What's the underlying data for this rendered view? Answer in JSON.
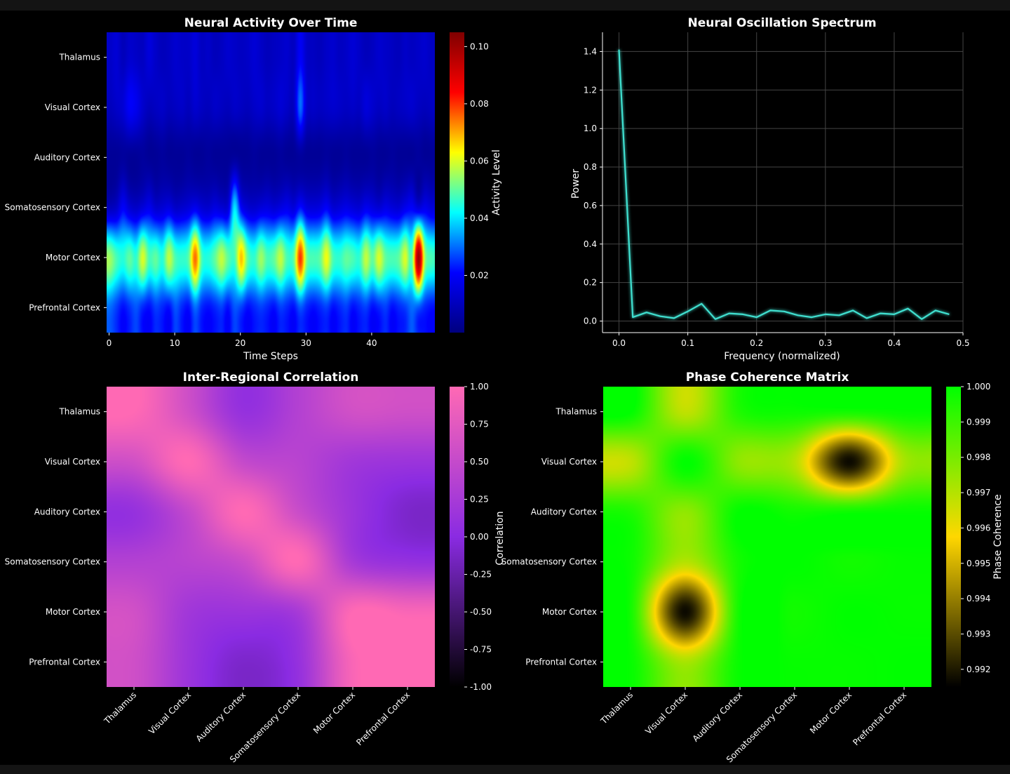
{
  "regions": [
    "Thalamus",
    "Visual Cortex",
    "Auditory Cortex",
    "Somatosensory Cortex",
    "Motor Cortex",
    "Prefrontal Cortex"
  ],
  "colors": {
    "background": "#000000",
    "spectrum_line": "#40E0D0",
    "activity_colormap": [
      "#00007f",
      "#0000ff",
      "#00ffff",
      "#ffff00",
      "#ff0000",
      "#7f0000"
    ],
    "correlation_colormap": [
      "#000000",
      "#8a2be2",
      "#ff69b4"
    ],
    "coherence_colormap": [
      "#000000",
      "#ffd700",
      "#00ff00"
    ]
  },
  "chart_data": [
    {
      "type": "heatmap",
      "title": "Neural Activity Over Time",
      "xlabel": "Time Steps",
      "ylabel": "",
      "rows": [
        "Thalamus",
        "Visual Cortex",
        "Auditory Cortex",
        "Somatosensory Cortex",
        "Motor Cortex",
        "Prefrontal Cortex"
      ],
      "x_range": [
        0,
        50
      ],
      "x_ticks": [
        0,
        10,
        20,
        30,
        40
      ],
      "colorbar_label": "Activity Level",
      "colorbar_range": [
        0.0,
        0.105
      ],
      "colorbar_ticks": [
        0.02,
        0.04,
        0.06,
        0.08,
        0.1
      ],
      "colorbar_tick_labels": [
        "0.02",
        "0.04",
        "0.06",
        "0.08",
        "0.10"
      ],
      "values": [
        [
          0.012,
          0.014,
          0.01,
          0.013,
          0.012,
          0.011,
          0.015,
          0.012,
          0.01,
          0.011,
          0.013,
          0.012,
          0.012,
          0.015,
          0.011,
          0.012,
          0.01,
          0.011,
          0.013,
          0.012,
          0.011,
          0.012,
          0.014,
          0.012,
          0.01,
          0.011,
          0.012,
          0.013,
          0.011,
          0.02,
          0.012,
          0.011,
          0.01,
          0.012,
          0.013,
          0.011,
          0.012,
          0.014,
          0.012,
          0.01,
          0.011,
          0.013,
          0.012,
          0.011,
          0.01,
          0.012,
          0.011,
          0.012,
          0.013,
          0.011
        ],
        [
          0.01,
          0.012,
          0.014,
          0.02,
          0.018,
          0.013,
          0.01,
          0.011,
          0.012,
          0.01,
          0.011,
          0.012,
          0.01,
          0.013,
          0.011,
          0.01,
          0.012,
          0.011,
          0.01,
          0.012,
          0.011,
          0.01,
          0.012,
          0.013,
          0.011,
          0.012,
          0.014,
          0.012,
          0.011,
          0.03,
          0.013,
          0.012,
          0.011,
          0.012,
          0.013,
          0.012,
          0.011,
          0.012,
          0.011,
          0.015,
          0.013,
          0.011,
          0.012,
          0.01,
          0.011,
          0.012,
          0.013,
          0.011,
          0.01,
          0.011
        ],
        [
          0.004,
          0.004,
          0.005,
          0.004,
          0.004,
          0.005,
          0.004,
          0.004,
          0.005,
          0.004,
          0.004,
          0.004,
          0.005,
          0.004,
          0.004,
          0.005,
          0.004,
          0.004,
          0.004,
          0.005,
          0.004,
          0.004,
          0.005,
          0.004,
          0.004,
          0.004,
          0.005,
          0.004,
          0.004,
          0.005,
          0.004,
          0.004,
          0.004,
          0.005,
          0.004,
          0.004,
          0.005,
          0.004,
          0.004,
          0.004,
          0.005,
          0.004,
          0.004,
          0.005,
          0.004,
          0.004,
          0.004,
          0.005,
          0.004,
          0.004
        ],
        [
          0.01,
          0.012,
          0.02,
          0.014,
          0.012,
          0.015,
          0.018,
          0.013,
          0.014,
          0.016,
          0.012,
          0.013,
          0.015,
          0.018,
          0.014,
          0.013,
          0.016,
          0.014,
          0.015,
          0.04,
          0.02,
          0.014,
          0.013,
          0.015,
          0.016,
          0.014,
          0.016,
          0.018,
          0.015,
          0.022,
          0.016,
          0.015,
          0.016,
          0.02,
          0.014,
          0.015,
          0.017,
          0.015,
          0.014,
          0.018,
          0.016,
          0.014,
          0.017,
          0.015,
          0.014,
          0.018,
          0.02,
          0.015,
          0.018,
          0.015
        ],
        [
          0.055,
          0.048,
          0.045,
          0.05,
          0.046,
          0.06,
          0.048,
          0.05,
          0.045,
          0.058,
          0.048,
          0.046,
          0.05,
          0.075,
          0.048,
          0.045,
          0.05,
          0.058,
          0.05,
          0.048,
          0.068,
          0.05,
          0.046,
          0.055,
          0.048,
          0.05,
          0.058,
          0.048,
          0.05,
          0.08,
          0.052,
          0.048,
          0.05,
          0.062,
          0.048,
          0.046,
          0.05,
          0.048,
          0.046,
          0.058,
          0.05,
          0.06,
          0.05,
          0.048,
          0.05,
          0.06,
          0.05,
          0.1,
          0.055,
          0.048
        ],
        [
          0.03,
          0.026,
          0.022,
          0.025,
          0.028,
          0.024,
          0.022,
          0.026,
          0.024,
          0.022,
          0.028,
          0.024,
          0.022,
          0.03,
          0.024,
          0.022,
          0.024,
          0.026,
          0.022,
          0.028,
          0.026,
          0.022,
          0.024,
          0.026,
          0.024,
          0.022,
          0.026,
          0.024,
          0.022,
          0.028,
          0.024,
          0.022,
          0.024,
          0.026,
          0.022,
          0.024,
          0.026,
          0.022,
          0.024,
          0.026,
          0.022,
          0.024,
          0.026,
          0.022,
          0.024,
          0.026,
          0.03,
          0.028,
          0.024,
          0.022
        ]
      ]
    },
    {
      "type": "line",
      "title": "Neural Oscillation Spectrum",
      "xlabel": "Frequency (normalized)",
      "ylabel": "Power",
      "xlim": [
        -0.024,
        0.5
      ],
      "ylim": [
        -0.06,
        1.5
      ],
      "x_ticks": [
        0.0,
        0.1,
        0.2,
        0.3,
        0.4,
        0.5
      ],
      "x_tick_labels": [
        "0.0",
        "0.1",
        "0.2",
        "0.3",
        "0.4",
        "0.5"
      ],
      "y_ticks": [
        0.0,
        0.2,
        0.4,
        0.6,
        0.8,
        1.0,
        1.2,
        1.4
      ],
      "y_tick_labels": [
        "0.0",
        "0.2",
        "0.4",
        "0.6",
        "0.8",
        "1.0",
        "1.2",
        "1.4"
      ],
      "grid": true,
      "x": [
        0.0,
        0.02,
        0.04,
        0.06,
        0.08,
        0.1,
        0.12,
        0.14,
        0.16,
        0.18,
        0.2,
        0.22,
        0.24,
        0.26,
        0.28,
        0.3,
        0.32,
        0.34,
        0.36,
        0.38,
        0.4,
        0.42,
        0.44,
        0.46,
        0.48
      ],
      "y": [
        1.41,
        0.02,
        0.045,
        0.025,
        0.015,
        0.05,
        0.09,
        0.01,
        0.04,
        0.035,
        0.02,
        0.055,
        0.05,
        0.03,
        0.02,
        0.035,
        0.03,
        0.055,
        0.015,
        0.04,
        0.035,
        0.065,
        0.01,
        0.055,
        0.035
      ]
    },
    {
      "type": "heatmap",
      "title": "Inter-Regional Correlation",
      "rows": [
        "Thalamus",
        "Visual Cortex",
        "Auditory Cortex",
        "Somatosensory Cortex",
        "Motor Cortex",
        "Prefrontal Cortex"
      ],
      "columns": [
        "Thalamus",
        "Visual Cortex",
        "Auditory Cortex",
        "Somatosensory Cortex",
        "Motor Cortex",
        "Prefrontal Cortex"
      ],
      "colorbar_label": "Correlation",
      "colorbar_range": [
        -1.0,
        1.0
      ],
      "colorbar_ticks": [
        1.0,
        0.75,
        0.5,
        0.25,
        0.0,
        -0.25,
        -0.5,
        -0.75,
        -1.0
      ],
      "colorbar_tick_labels": [
        "1.00",
        "0.75",
        "0.50",
        "0.25",
        "0.00",
        "-0.25",
        "-0.50",
        "-0.75",
        "-1.00"
      ],
      "values": [
        [
          1.0,
          0.6,
          0.1,
          0.35,
          0.6,
          0.58
        ],
        [
          0.6,
          1.0,
          0.5,
          0.4,
          0.2,
          0.15
        ],
        [
          0.1,
          0.5,
          1.0,
          0.55,
          0.15,
          -0.1
        ],
        [
          0.35,
          0.4,
          0.55,
          1.0,
          0.25,
          0.1
        ],
        [
          0.6,
          0.2,
          0.15,
          0.25,
          1.0,
          0.95
        ],
        [
          0.58,
          0.15,
          -0.1,
          0.1,
          0.95,
          1.0
        ]
      ]
    },
    {
      "type": "heatmap",
      "title": "Phase Coherence Matrix",
      "rows": [
        "Thalamus",
        "Visual Cortex",
        "Auditory Cortex",
        "Somatosensory Cortex",
        "Motor Cortex",
        "Prefrontal Cortex"
      ],
      "columns": [
        "Thalamus",
        "Visual Cortex",
        "Auditory Cortex",
        "Somatosensory Cortex",
        "Motor Cortex",
        "Prefrontal Cortex"
      ],
      "colorbar_label": "Phase Coherence",
      "colorbar_range": [
        0.9915,
        1.0
      ],
      "colorbar_ticks": [
        1.0,
        0.999,
        0.998,
        0.997,
        0.996,
        0.995,
        0.994,
        0.993,
        0.992
      ],
      "colorbar_tick_labels": [
        "1.000",
        "0.999",
        "0.998",
        "0.997",
        "0.996",
        "0.995",
        "0.994",
        "0.993",
        "0.992"
      ],
      "values": [
        [
          1.0,
          0.9968,
          0.9995,
          0.9998,
          0.9997,
          0.9999
        ],
        [
          0.9968,
          1.0,
          0.9976,
          0.997,
          0.9917,
          0.9972
        ],
        [
          0.9995,
          0.9976,
          1.0,
          0.9997,
          0.9998,
          0.9999
        ],
        [
          0.9998,
          0.997,
          0.9997,
          1.0,
          0.9997,
          0.9999
        ],
        [
          0.9997,
          0.9917,
          0.9998,
          0.9997,
          1.0,
          0.9999
        ],
        [
          0.9999,
          0.9972,
          0.9999,
          0.9999,
          0.9999,
          1.0
        ]
      ]
    }
  ]
}
